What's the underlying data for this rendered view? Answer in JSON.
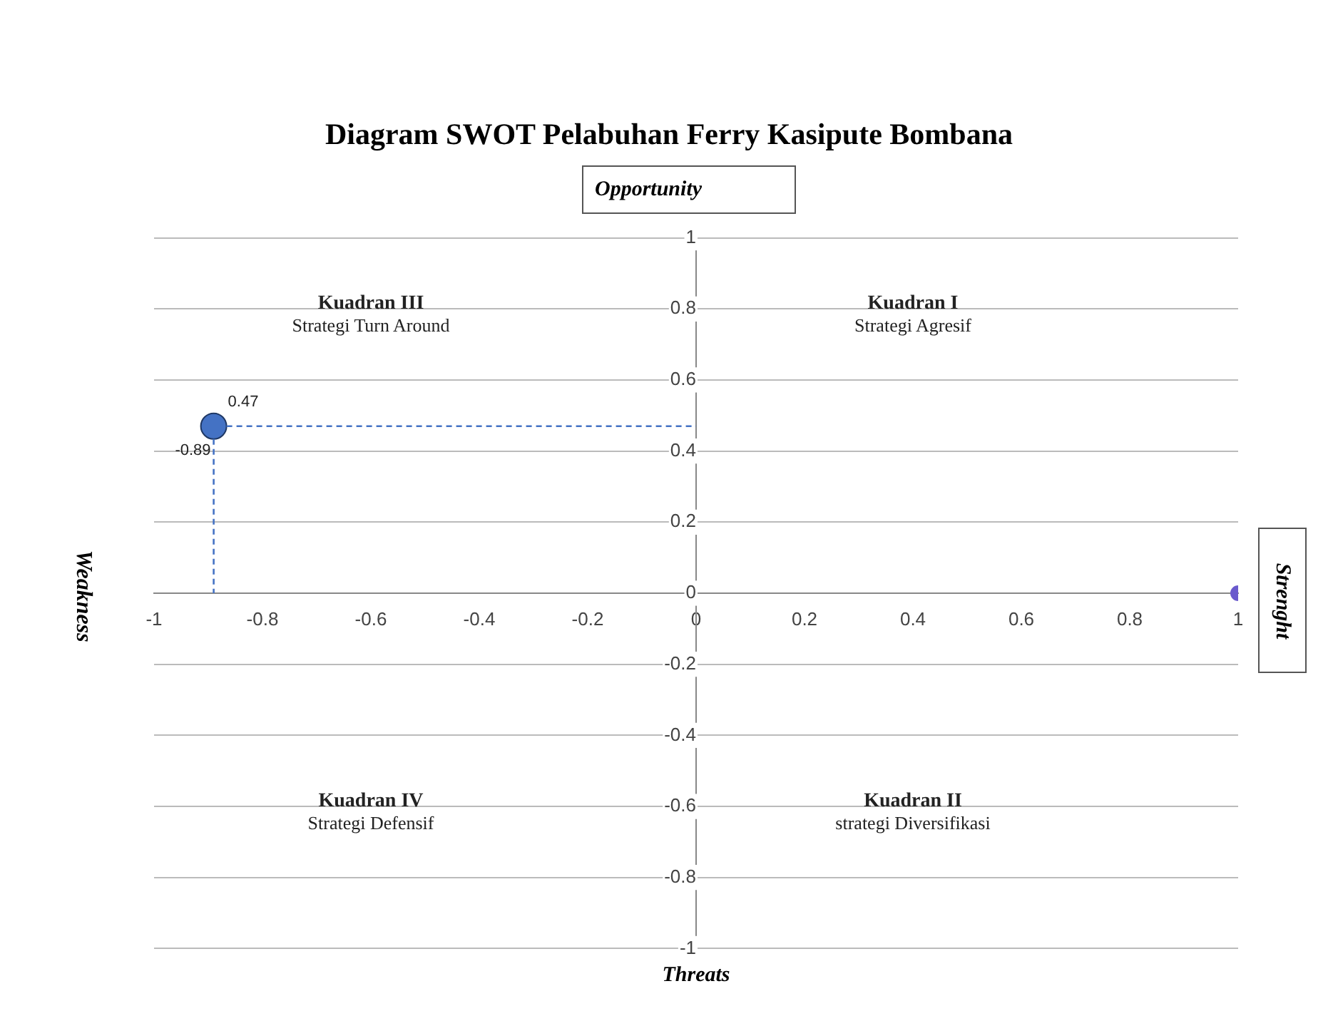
{
  "chart_data": {
    "type": "scatter",
    "title": "Diagram SWOT Pelabuhan Ferry Kasipute Bombana",
    "x2label": "Opportunity",
    "xlabel": "Threats",
    "ylabel": "Weakness",
    "y2label": "Strenght",
    "series": [
      {
        "x": [
          -0.89
        ],
        "values": [
          0.47
        ],
        "color": "#4472c4",
        "value_labels": [
          "0.47"
        ]
      },
      {
        "x": [
          1
        ],
        "values": [
          0
        ],
        "color": "#6a5acd"
      }
    ],
    "xlim": [
      -1,
      1
    ],
    "ylim": [
      -1,
      1
    ],
    "xticks": [
      -1,
      -0.8,
      -0.6,
      -0.4,
      -0.2,
      0,
      0.2,
      0.4,
      0.6,
      0.8,
      1
    ],
    "yticks": [
      -1,
      -0.8,
      -0.6,
      -0.4,
      -0.2,
      0,
      0.2,
      0.4,
      0.6,
      0.8,
      1
    ],
    "grid": "y",
    "marker": "circle",
    "annotations": [
      {
        "text": "-0.89",
        "x": -0.89,
        "y": 0.47
      },
      "Kuadran III\nStrategi Turn Around",
      "Kuadran I\nStrategi Agresif",
      "Kuadran IV\nStrategi Defensif",
      "Kuadran II\nstrategi Diversifikasi"
    ]
  }
}
